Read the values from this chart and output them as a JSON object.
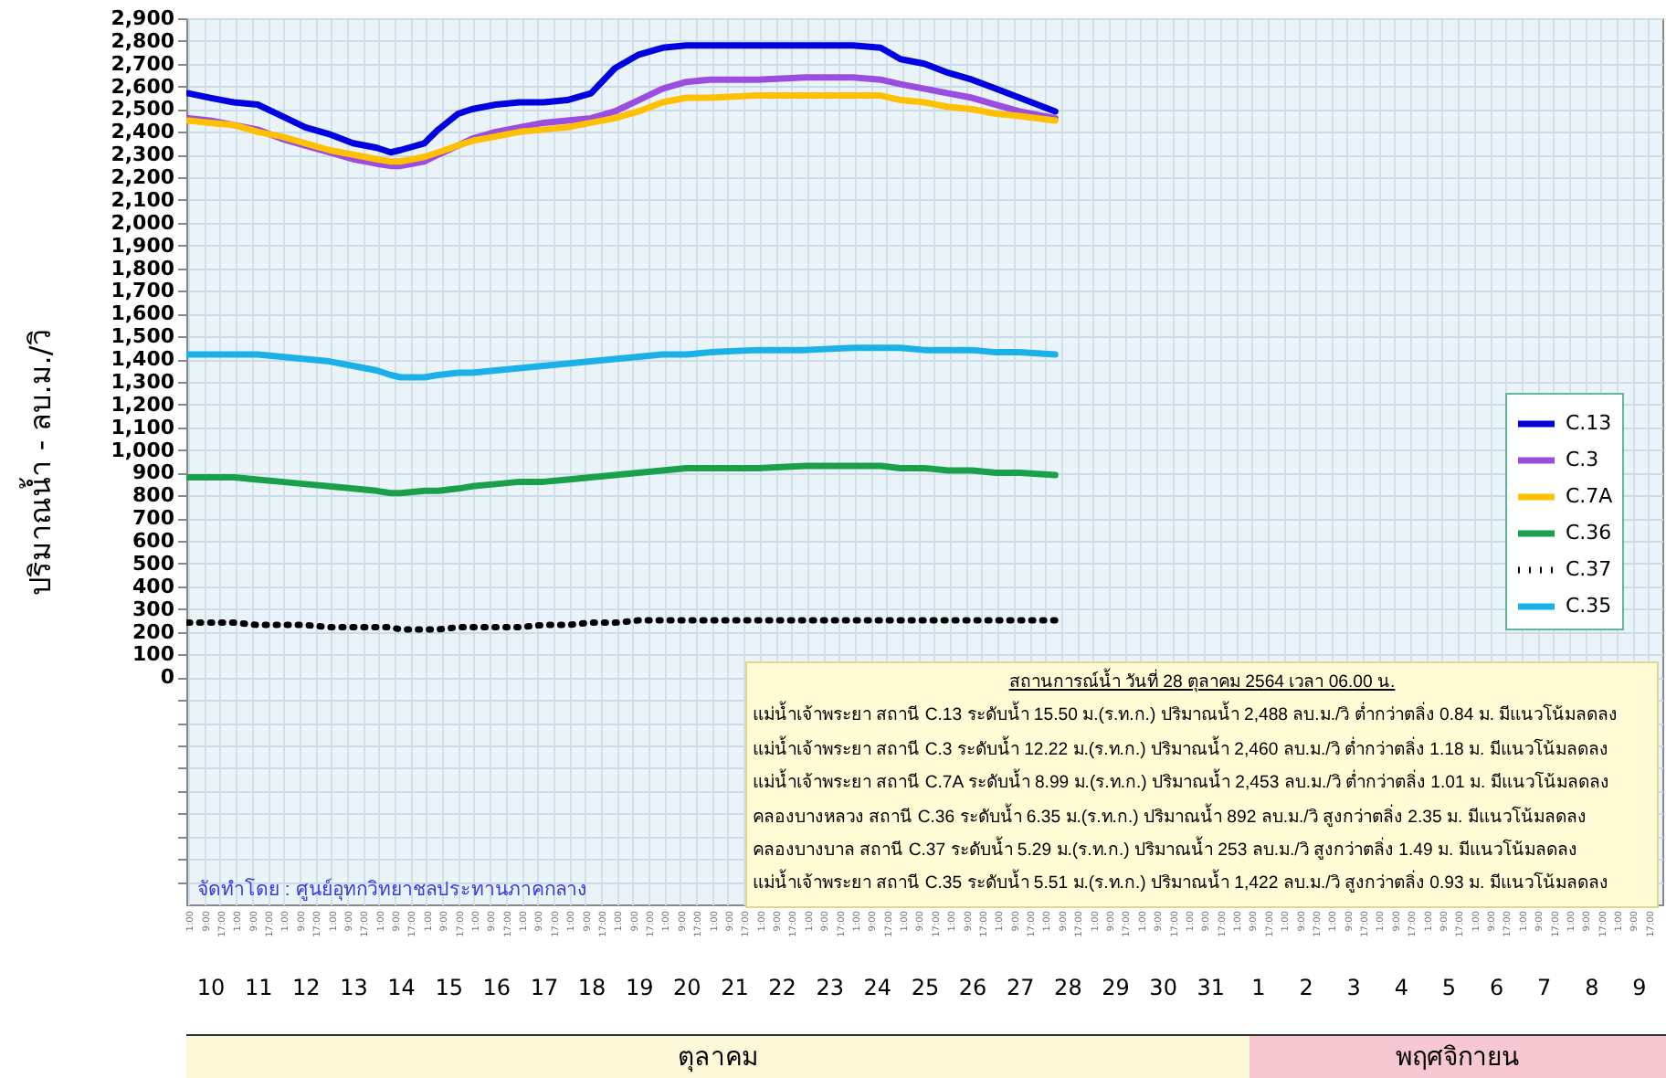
{
  "chart_data": {
    "type": "line",
    "ylabel": "ปริมาณน้ำ - ลบ.ม./วิ",
    "x": [
      "--10-10T01:00",
      "--10-10T12:00",
      "--10-11T00:00",
      "--10-11T12:00",
      "--10-12T00:00",
      "--10-12T12:00",
      "--10-13T00:00",
      "--10-13T12:00",
      "--10-14T00:00",
      "--10-14T07:00",
      "--10-14T12:00",
      "--10-15T00:00",
      "--10-15T07:00",
      "--10-15T17:00",
      "--10-16T00:00",
      "--10-16T12:00",
      "--10-17T00:00",
      "--10-17T12:00",
      "--10-18T00:00",
      "--10-18T12:00",
      "--10-19T00:00",
      "--10-19T12:00",
      "--10-20T00:00",
      "--10-20T12:00",
      "--10-21T00:00",
      "--10-22T00:00",
      "--10-23T00:00",
      "--10-24T00:00",
      "--10-24T14:00",
      "--10-25T00:00",
      "--10-25T12:00",
      "--10-26T00:00",
      "--10-26T12:00",
      "--10-27T00:00",
      "--10-27T12:00",
      "--10-28T06:00"
    ],
    "series": [
      {
        "name": "C.13",
        "color": "#0000e0",
        "values": [
          2570,
          2550,
          2530,
          2520,
          2470,
          2420,
          2390,
          2350,
          2330,
          2310,
          2320,
          2350,
          2410,
          2480,
          2500,
          2520,
          2530,
          2530,
          2540,
          2570,
          2680,
          2740,
          2770,
          2780,
          2780,
          2780,
          2780,
          2780,
          2770,
          2720,
          2700,
          2660,
          2630,
          2590,
          2550,
          2490
        ]
      },
      {
        "name": "C.3",
        "color": "#9b4de0",
        "values": [
          2460,
          2450,
          2430,
          2410,
          2370,
          2340,
          2310,
          2280,
          2260,
          2250,
          2250,
          2270,
          2300,
          2340,
          2370,
          2400,
          2420,
          2440,
          2450,
          2460,
          2490,
          2540,
          2590,
          2620,
          2630,
          2630,
          2640,
          2640,
          2630,
          2610,
          2590,
          2570,
          2550,
          2520,
          2490,
          2460
        ]
      },
      {
        "name": "C.7A",
        "color": "#ffc000",
        "values": [
          2450,
          2440,
          2430,
          2400,
          2380,
          2350,
          2320,
          2300,
          2280,
          2270,
          2270,
          2290,
          2310,
          2340,
          2360,
          2380,
          2400,
          2410,
          2420,
          2440,
          2460,
          2490,
          2530,
          2550,
          2550,
          2560,
          2560,
          2560,
          2560,
          2540,
          2530,
          2510,
          2500,
          2480,
          2470,
          2450
        ]
      },
      {
        "name": "C.36",
        "color": "#1aa04a",
        "values": [
          880,
          880,
          880,
          870,
          860,
          850,
          840,
          830,
          820,
          810,
          810,
          820,
          820,
          830,
          840,
          850,
          860,
          860,
          870,
          880,
          890,
          900,
          910,
          920,
          920,
          920,
          930,
          930,
          930,
          920,
          920,
          910,
          910,
          900,
          900,
          890
        ]
      },
      {
        "name": "C.37",
        "color": "#000000",
        "line_style": "dotted",
        "values": [
          240,
          240,
          240,
          230,
          230,
          230,
          220,
          220,
          220,
          220,
          210,
          210,
          210,
          220,
          220,
          220,
          220,
          230,
          230,
          240,
          240,
          250,
          250,
          250,
          250,
          250,
          250,
          250,
          250,
          250,
          250,
          250,
          250,
          250,
          250,
          250
        ]
      },
      {
        "name": "C.35",
        "color": "#1ab0e8",
        "values": [
          1420,
          1420,
          1420,
          1420,
          1410,
          1400,
          1390,
          1370,
          1350,
          1330,
          1320,
          1320,
          1330,
          1340,
          1340,
          1350,
          1360,
          1370,
          1380,
          1390,
          1400,
          1410,
          1420,
          1420,
          1430,
          1440,
          1440,
          1450,
          1450,
          1450,
          1440,
          1440,
          1440,
          1430,
          1430,
          1420
        ]
      }
    ],
    "ylim": [
      -1000,
      2900
    ],
    "yticks": [
      {
        "value": -900,
        "label": null
      },
      {
        "value": -800,
        "label": null
      },
      {
        "value": -700,
        "label": null
      },
      {
        "value": -600,
        "label": null
      },
      {
        "value": -500,
        "label": null
      },
      {
        "value": -400,
        "label": null
      },
      {
        "value": -300,
        "label": null
      },
      {
        "value": -200,
        "label": null
      },
      {
        "value": -100,
        "label": null
      },
      0,
      100,
      200,
      300,
      400,
      500,
      600,
      700,
      800,
      900,
      {
        "value": 1000,
        "label": "1,000"
      },
      {
        "value": 1100,
        "label": "1,100"
      },
      {
        "value": 1200,
        "label": "1,200"
      },
      {
        "value": 1300,
        "label": "1,300"
      },
      {
        "value": 1400,
        "label": "1,400"
      },
      {
        "value": 1500,
        "label": "1,500"
      },
      {
        "value": 1600,
        "label": "1,600"
      },
      {
        "value": 1700,
        "label": "1,700"
      },
      {
        "value": 1800,
        "label": "1,800"
      },
      {
        "value": 1900,
        "label": "1,900"
      },
      {
        "value": 2000,
        "label": "2,000"
      },
      {
        "value": 2100,
        "label": "2,100"
      },
      {
        "value": 2200,
        "label": "2,200"
      },
      {
        "value": 2300,
        "label": "2,300"
      },
      {
        "value": 2400,
        "label": "2,400"
      },
      {
        "value": 2500,
        "label": "2,500"
      },
      {
        "value": 2600,
        "label": "2,600"
      },
      {
        "value": 2700,
        "label": "2,700"
      },
      {
        "value": 2800,
        "label": "2,800"
      },
      {
        "value": 2900,
        "label": "2,900"
      }
    ],
    "xlim": [
      "--10-10T00:00",
      "--11-10T00:00"
    ],
    "xticks": [
      {
        "value": "--10-10T01:00",
        "label": "1:00"
      },
      {
        "value": "--10-10T09:00",
        "label": "9:00"
      },
      {
        "value": "--10-10T17:00",
        "label": "17:00"
      },
      {
        "value": "--10-11T01:00",
        "label": "1:00"
      },
      {
        "value": "--10-11T09:00",
        "label": "9:00"
      },
      {
        "value": "--10-11T17:00",
        "label": "17:00"
      },
      {
        "value": "--10-12T01:00",
        "label": "1:00"
      },
      {
        "value": "--10-12T09:00",
        "label": "9:00"
      },
      {
        "value": "--10-12T17:00",
        "label": "17:00"
      },
      {
        "value": "--10-13T01:00",
        "label": "1:00"
      },
      {
        "value": "--10-13T09:00",
        "label": "9:00"
      },
      {
        "value": "--10-13T17:00",
        "label": "17:00"
      },
      {
        "value": "--10-14T01:00",
        "label": "1:00"
      },
      {
        "value": "--10-14T09:00",
        "label": "9:00"
      },
      {
        "value": "--10-14T17:00",
        "label": "17:00"
      },
      {
        "value": "--10-15T01:00",
        "label": "1:00"
      },
      {
        "value": "--10-15T09:00",
        "label": "9:00"
      },
      {
        "value": "--10-15T17:00",
        "label": "17:00"
      },
      {
        "value": "--10-16T01:00",
        "label": "1:00"
      },
      {
        "value": "--10-16T09:00",
        "label": "9:00"
      },
      {
        "value": "--10-16T17:00",
        "label": "17:00"
      },
      {
        "value": "--10-17T01:00",
        "label": "1:00"
      },
      {
        "value": "--10-17T09:00",
        "label": "9:00"
      },
      {
        "value": "--10-17T17:00",
        "label": "17:00"
      },
      {
        "value": "--10-18T01:00",
        "label": "1:00"
      },
      {
        "value": "--10-18T09:00",
        "label": "9:00"
      },
      {
        "value": "--10-18T17:00",
        "label": "17:00"
      },
      {
        "value": "--10-19T01:00",
        "label": "1:00"
      },
      {
        "value": "--10-19T09:00",
        "label": "9:00"
      },
      {
        "value": "--10-19T17:00",
        "label": "17:00"
      },
      {
        "value": "--10-20T01:00",
        "label": "1:00"
      },
      {
        "value": "--10-20T09:00",
        "label": "9:00"
      },
      {
        "value": "--10-20T17:00",
        "label": "17:00"
      },
      {
        "value": "--10-21T01:00",
        "label": "1:00"
      },
      {
        "value": "--10-21T09:00",
        "label": "9:00"
      },
      {
        "value": "--10-21T17:00",
        "label": "17:00"
      },
      {
        "value": "--10-22T01:00",
        "label": "1:00"
      },
      {
        "value": "--10-22T09:00",
        "label": "9:00"
      },
      {
        "value": "--10-22T17:00",
        "label": "17:00"
      },
      {
        "value": "--10-23T01:00",
        "label": "1:00"
      },
      {
        "value": "--10-23T09:00",
        "label": "9:00"
      },
      {
        "value": "--10-23T17:00",
        "label": "17:00"
      },
      {
        "value": "--10-24T01:00",
        "label": "1:00"
      },
      {
        "value": "--10-24T09:00",
        "label": "9:00"
      },
      {
        "value": "--10-24T17:00",
        "label": "17:00"
      },
      {
        "value": "--10-25T01:00",
        "label": "1:00"
      },
      {
        "value": "--10-25T09:00",
        "label": "9:00"
      },
      {
        "value": "--10-25T17:00",
        "label": "17:00"
      },
      {
        "value": "--10-26T01:00",
        "label": "1:00"
      },
      {
        "value": "--10-26T09:00",
        "label": "9:00"
      },
      {
        "value": "--10-26T17:00",
        "label": "17:00"
      },
      {
        "value": "--10-27T01:00",
        "label": "1:00"
      },
      {
        "value": "--10-27T09:00",
        "label": "9:00"
      },
      {
        "value": "--10-27T17:00",
        "label": "17:00"
      },
      {
        "value": "--10-28T01:00",
        "label": "1:00"
      },
      {
        "value": "--10-28T09:00",
        "label": "9:00"
      },
      {
        "value": "--10-28T17:00",
        "label": "17:00"
      },
      {
        "value": "--10-29T01:00",
        "label": "1:00"
      },
      {
        "value": "--10-29T09:00",
        "label": "9:00"
      },
      {
        "value": "--10-29T17:00",
        "label": "17:00"
      },
      {
        "value": "--10-30T01:00",
        "label": "1:00"
      },
      {
        "value": "--10-30T09:00",
        "label": "9:00"
      },
      {
        "value": "--10-30T17:00",
        "label": "17:00"
      },
      {
        "value": "--10-31T01:00",
        "label": "1:00"
      },
      {
        "value": "--10-31T09:00",
        "label": "9:00"
      },
      {
        "value": "--10-31T17:00",
        "label": "17:00"
      },
      {
        "value": "--11-01T01:00",
        "label": "1:00"
      },
      {
        "value": "--11-01T09:00",
        "label": "9:00"
      },
      {
        "value": "--11-01T17:00",
        "label": "17:00"
      },
      {
        "value": "--11-02T01:00",
        "label": "1:00"
      },
      {
        "value": "--11-02T09:00",
        "label": "9:00"
      },
      {
        "value": "--11-02T17:00",
        "label": "17:00"
      },
      {
        "value": "--11-03T01:00",
        "label": "1:00"
      },
      {
        "value": "--11-03T09:00",
        "label": "9:00"
      },
      {
        "value": "--11-03T17:00",
        "label": "17:00"
      },
      {
        "value": "--11-04T01:00",
        "label": "1:00"
      },
      {
        "value": "--11-04T09:00",
        "label": "9:00"
      },
      {
        "value": "--11-04T17:00",
        "label": "17:00"
      },
      {
        "value": "--11-05T01:00",
        "label": "1:00"
      },
      {
        "value": "--11-05T09:00",
        "label": "9:00"
      },
      {
        "value": "--11-05T17:00",
        "label": "17:00"
      },
      {
        "value": "--11-06T01:00",
        "label": "1:00"
      },
      {
        "value": "--11-06T09:00",
        "label": "9:00"
      },
      {
        "value": "--11-06T17:00",
        "label": "17:00"
      },
      {
        "value": "--11-07T01:00",
        "label": "1:00"
      },
      {
        "value": "--11-07T09:00",
        "label": "9:00"
      },
      {
        "value": "--11-07T17:00",
        "label": "17:00"
      },
      {
        "value": "--11-08T01:00",
        "label": "1:00"
      },
      {
        "value": "--11-08T09:00",
        "label": "9:00"
      },
      {
        "value": "--11-08T17:00",
        "label": "17:00"
      },
      {
        "value": "--11-09T01:00",
        "label": "1:00"
      },
      {
        "value": "--11-09T09:00",
        "label": "9:00"
      },
      {
        "value": "--11-09T17:00",
        "label": "17:00"
      }
    ],
    "x2lim": [
      "--10-10T00:00",
      "--11-10T00:00"
    ],
    "x2ticks": [
      {
        "value": "--10-10T12:00",
        "label": "10"
      },
      {
        "value": "--10-11T12:00",
        "label": "11"
      },
      {
        "value": "--10-12T12:00",
        "label": "12"
      },
      {
        "value": "--10-13T12:00",
        "label": "13"
      },
      {
        "value": "--10-14T12:00",
        "label": "14"
      },
      {
        "value": "--10-15T12:00",
        "label": "15"
      },
      {
        "value": "--10-16T12:00",
        "label": "16"
      },
      {
        "value": "--10-17T12:00",
        "label": "17"
      },
      {
        "value": "--10-18T12:00",
        "label": "18"
      },
      {
        "value": "--10-19T12:00",
        "label": "19"
      },
      {
        "value": "--10-20T12:00",
        "label": "20"
      },
      {
        "value": "--10-21T12:00",
        "label": "21"
      },
      {
        "value": "--10-22T12:00",
        "label": "22"
      },
      {
        "value": "--10-23T12:00",
        "label": "23"
      },
      {
        "value": "--10-24T12:00",
        "label": "24"
      },
      {
        "value": "--10-25T12:00",
        "label": "25"
      },
      {
        "value": "--10-26T12:00",
        "label": "26"
      },
      {
        "value": "--10-27T12:00",
        "label": "27"
      },
      {
        "value": "--10-28T12:00",
        "label": "28"
      },
      {
        "value": "--10-29T12:00",
        "label": "29"
      },
      {
        "value": "--10-30T12:00",
        "label": "30"
      },
      {
        "value": "--10-31T12:00",
        "label": "31"
      },
      {
        "value": "--11-01T12:00",
        "label": "1"
      },
      {
        "value": "--11-02T12:00",
        "label": "2"
      },
      {
        "value": "--11-03T12:00",
        "label": "3"
      },
      {
        "value": "--11-04T12:00",
        "label": "4"
      },
      {
        "value": "--11-05T12:00",
        "label": "5"
      },
      {
        "value": "--11-06T12:00",
        "label": "6"
      },
      {
        "value": "--11-07T12:00",
        "label": "7"
      },
      {
        "value": "--11-08T12:00",
        "label": "8"
      },
      {
        "value": "--11-09T12:00",
        "label": "9"
      }
    ],
    "grid": true,
    "legend": "right",
    "annotations": [
      "ตุลาคม",
      "พฤศจิกายน",
      "จัดทำโดย : ศูนย์อุทกวิทยาชลประทานภาคกลาง",
      "สถานการณ์น้ำ วันที่ 28 ตุลาคม 2564 เวลา 06.00 น.",
      "แม่น้ำเจ้าพระยา สถานี C.13 ระดับน้ำ 15.50 ม.(ร.ท.ก.) ปริมาณน้ำ 2,488 ลบ.ม./วิ ต่ำกว่าตลิ่ง 0.84 ม. มีแนวโน้มลดลง",
      "แม่น้ำเจ้าพระยา สถานี C.3 ระดับน้ำ 12.22 ม.(ร.ท.ก.) ปริมาณน้ำ 2,460 ลบ.ม./วิ ต่ำกว่าตลิ่ง 1.18 ม. มีแนวโน้มลดลง",
      "แม่น้ำเจ้าพระยา สถานี C.7A ระดับน้ำ 8.99 ม.(ร.ท.ก.) ปริมาณน้ำ 2,453 ลบ.ม./วิ ต่ำกว่าตลิ่ง 1.01 ม. มีแนวโน้มลดลง",
      "คลองบางหลวง สถานี C.36 ระดับน้ำ 6.35 ม.(ร.ท.ก.) ปริมาณน้ำ 892 ลบ.ม./วิ สูงกว่าตลิ่ง 2.35 ม. มีแนวโน้มลดลง",
      "คลองบางบาล สถานี C.37 ระดับน้ำ 5.29 ม.(ร.ท.ก.) ปริมาณน้ำ 253 ลบ.ม./วิ สูงกว่าตลิ่ง 1.49 ม. มีแนวโน้มลดลง",
      "แม่น้ำเจ้าพระยา สถานี C.35 ระดับน้ำ 5.51 ม.(ร.ท.ก.) ปริมาณน้ำ 1,422 ลบ.ม./วิ สูงกว่าตลิ่ง 0.93 ม. มีแนวโน้มลดลง"
    ]
  }
}
